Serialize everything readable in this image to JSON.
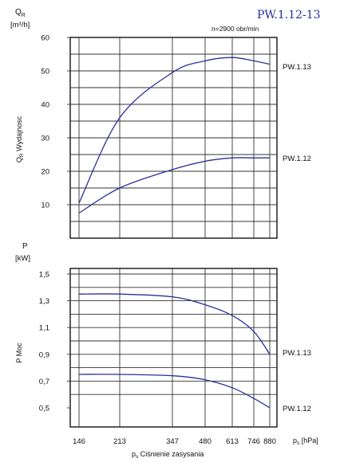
{
  "header": {
    "title": "PW.1.12-13",
    "speed": "n=2900 obr/min"
  },
  "chart_data": [
    {
      "type": "line",
      "ylabel_symbol": "Q",
      "ylabel_sub": "R",
      "yunit": "[m³/h]",
      "ylabel_side": "Q",
      "ylabel_side_sub": "R",
      "ylabel_side_text": "Wydajnosc",
      "ylim": [
        0,
        60
      ],
      "y_ticks": [
        "10",
        "20",
        "30",
        "40",
        "50",
        "60"
      ],
      "x": [
        146,
        213,
        347,
        480,
        613,
        746,
        880
      ],
      "series": [
        {
          "name": "PW.1.13",
          "values": [
            10.5,
            36.0,
            49.5,
            53.0,
            54.0,
            53.0,
            52.0
          ]
        },
        {
          "name": "PW.1.12",
          "values": [
            7.5,
            15.0,
            20.5,
            23.0,
            24.0,
            24.0,
            24.0
          ]
        }
      ]
    },
    {
      "type": "line",
      "ylabel_symbol": "P",
      "yunit": "[kW]",
      "ylabel_side": "P Moc",
      "ylim": [
        0.4,
        1.55
      ],
      "y_ticks": [
        "1,5",
        "1,3",
        "1,1",
        "0,9",
        "0,7",
        "0,5"
      ],
      "x": [
        146,
        213,
        347,
        480,
        613,
        746,
        880
      ],
      "series": [
        {
          "name": "PW.1.13",
          "values": [
            1.35,
            1.35,
            1.33,
            1.27,
            1.19,
            1.07,
            0.9
          ]
        },
        {
          "name": "PW.1.12",
          "values": [
            0.75,
            0.75,
            0.74,
            0.71,
            0.65,
            0.57,
            0.5
          ]
        }
      ],
      "x_ticks": [
        "146",
        "213",
        "347",
        "480",
        "613",
        "746",
        "880"
      ],
      "xlabel_symbol": "p",
      "xlabel_sub": "s",
      "xlabel_text": "Ciśnienie zasysania",
      "xunit_symbol": "p",
      "xunit_sub": "s",
      "xunit": "[hPa]"
    }
  ]
}
